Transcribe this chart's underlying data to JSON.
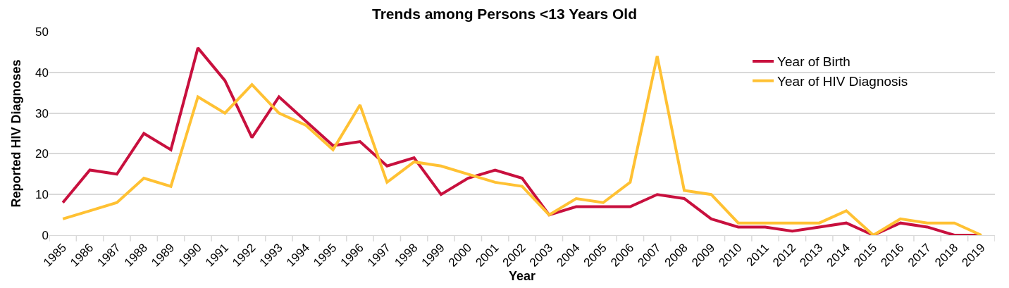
{
  "chart_data": {
    "type": "line",
    "title": "Trends among Persons <13 Years Old",
    "xlabel": "Year",
    "ylabel": "Reported HIV Diagnoses",
    "categories": [
      "1985",
      "1986",
      "1987",
      "1988",
      "1989",
      "1990",
      "1991",
      "1992",
      "1993",
      "1994",
      "1995",
      "1996",
      "1997",
      "1998",
      "1999",
      "2000",
      "2001",
      "2002",
      "2003",
      "2004",
      "2005",
      "2006",
      "2007",
      "2008",
      "2009",
      "2010",
      "2011",
      "2012",
      "2013",
      "2014",
      "2015",
      "2016",
      "2017",
      "2018",
      "2019"
    ],
    "series": [
      {
        "name": "Year of Birth",
        "color": "#c8103e",
        "values": [
          8,
          16,
          15,
          25,
          21,
          46,
          38,
          24,
          34,
          28,
          22,
          23,
          17,
          19,
          10,
          14,
          16,
          14,
          5,
          7,
          7,
          7,
          10,
          9,
          4,
          2,
          2,
          1,
          2,
          3,
          0,
          3,
          2,
          0,
          0
        ]
      },
      {
        "name": "Year of HIV Diagnosis",
        "color": "#ffc133",
        "values": [
          4,
          6,
          8,
          14,
          12,
          34,
          30,
          37,
          30,
          27,
          21,
          32,
          13,
          18,
          17,
          15,
          13,
          12,
          5,
          9,
          8,
          13,
          44,
          11,
          10,
          3,
          3,
          3,
          3,
          6,
          0,
          4,
          3,
          3,
          0
        ]
      }
    ],
    "ylim": [
      0,
      50
    ],
    "yticks": [
      0,
      10,
      20,
      30,
      40,
      50
    ],
    "grid": "y",
    "legend": "top right",
    "marker": "none",
    "line_style": "solid"
  }
}
